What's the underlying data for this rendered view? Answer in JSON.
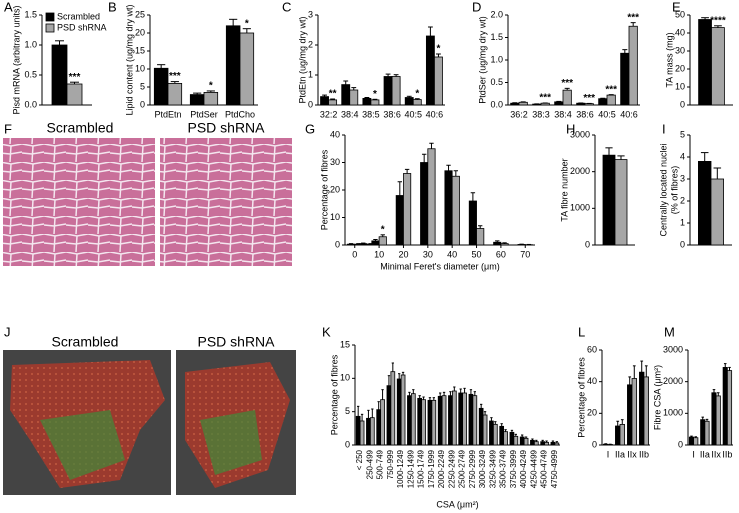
{
  "chart_data": [
    {
      "type": "bar",
      "panel": "A",
      "ylabel": "Pisd mRNA (arbitrary units)",
      "ylim": [
        0,
        1.5
      ],
      "yticks": [
        {
          "value": 0,
          "label": "0.0"
        },
        0.5,
        {
          "value": 1,
          "label": "1.0"
        },
        1.5
      ],
      "legend": "upper left",
      "series": [
        {
          "name": "Scrambled",
          "color": "#000000",
          "values": [
            1.0
          ],
          "errors": [
            0.07
          ]
        },
        {
          "name": "PSD shRNA",
          "color": "#a6a6a6",
          "values": [
            0.35
          ],
          "errors": [
            0.03
          ]
        }
      ],
      "annotations": [
        "***"
      ]
    },
    {
      "type": "bar",
      "panel": "B",
      "ylabel": "Lipid content (ug/mg dry wt)",
      "categories": [
        "PtdEtn",
        "PtdSer",
        "PtdCho"
      ],
      "ylim": [
        0,
        25
      ],
      "yticks": [
        0,
        5,
        10,
        15,
        20,
        25
      ],
      "series": [
        {
          "color": "#000000",
          "values": [
            10.2,
            2.9,
            22
          ],
          "errors": [
            1,
            0.4,
            1.8
          ]
        },
        {
          "color": "#a6a6a6",
          "values": [
            6.0,
            3.5,
            20
          ],
          "errors": [
            0.5,
            0.4,
            1.2
          ]
        }
      ],
      "annotations": [
        "***",
        "*",
        "*"
      ]
    },
    {
      "type": "bar",
      "panel": "C",
      "ylabel": "PtdEtn (ug/mg dry wt)",
      "categories": [
        "32:2",
        "38:4",
        "38:5",
        "38:6",
        "40:5",
        "40:6"
      ],
      "ylim": [
        0,
        3
      ],
      "yticks": [
        0,
        1,
        2,
        3
      ],
      "series": [
        {
          "color": "#000000",
          "values": [
            0.28,
            0.68,
            0.22,
            0.95,
            0.25,
            2.3
          ],
          "errors": [
            0.05,
            0.12,
            0.03,
            0.08,
            0.04,
            0.3
          ]
        },
        {
          "color": "#a6a6a6",
          "values": [
            0.17,
            0.5,
            0.17,
            0.95,
            0.18,
            1.6
          ],
          "errors": [
            0.03,
            0.08,
            0.02,
            0.06,
            0.03,
            0.1
          ]
        }
      ],
      "annotations": [
        "**",
        null,
        "*",
        null,
        "*",
        "*"
      ]
    },
    {
      "type": "bar",
      "panel": "D",
      "ylabel": "PtdSer (ug/mg dry wt)",
      "categories": [
        "36:2",
        "38:3",
        "38:4",
        "38:6",
        "40:5",
        "40:6"
      ],
      "ylim": [
        0,
        2
      ],
      "yticks": [
        {
          "value": 0,
          "label": "0.0"
        },
        0.5,
        {
          "value": 1,
          "label": "1.0"
        },
        1.5,
        {
          "value": 2,
          "label": "2.0"
        }
      ],
      "series": [
        {
          "color": "#000000",
          "values": [
            0.04,
            0.02,
            0.07,
            0.04,
            0.14,
            1.15
          ],
          "errors": [
            0.01,
            0.005,
            0.01,
            0.005,
            0.01,
            0.08
          ]
        },
        {
          "color": "#a6a6a6",
          "values": [
            0.06,
            0.04,
            0.33,
            0.03,
            0.22,
            1.75
          ],
          "errors": [
            0.01,
            0.005,
            0.04,
            0.005,
            0.01,
            0.08
          ]
        }
      ],
      "annotations": [
        null,
        "***",
        "***",
        "***",
        "***",
        "***"
      ]
    },
    {
      "type": "bar",
      "panel": "E",
      "ylabel": "TA mass (mg)",
      "ylim": [
        0,
        50
      ],
      "yticks": [
        0,
        10,
        20,
        30,
        40,
        50
      ],
      "series": [
        {
          "color": "#000000",
          "values": [
            47.5
          ],
          "errors": [
            1
          ]
        },
        {
          "color": "#a6a6a6",
          "values": [
            43
          ],
          "errors": [
            1
          ]
        }
      ],
      "annotations": [
        "****"
      ]
    },
    {
      "type": "bar",
      "panel": "G",
      "ylabel": "Percentage of fibres",
      "xlabel": "Minimal Feret's diameter (μm)",
      "x": [
        0,
        5,
        10,
        20,
        30,
        40,
        50,
        60,
        70
      ],
      "xlim": [
        -4,
        74
      ],
      "xticks": [
        0,
        10,
        20,
        30,
        40,
        50,
        60,
        70
      ],
      "ylim": [
        0,
        40
      ],
      "yticks": [
        0,
        10,
        20,
        30,
        40
      ],
      "series": [
        {
          "color": "#000000",
          "values": [
            0.3,
            0.5,
            1.5,
            18,
            30,
            27,
            16,
            1,
            0.2
          ],
          "errors": [
            0.2,
            0.2,
            0.5,
            5,
            3,
            2,
            3,
            0.5,
            0.1
          ]
        },
        {
          "color": "#a6a6a6",
          "values": [
            0.3,
            0.3,
            3,
            26,
            35,
            25,
            6,
            0.5,
            0.1
          ],
          "errors": [
            0.2,
            0.2,
            0.7,
            1.5,
            2,
            2,
            1,
            0.3,
            0.1
          ]
        }
      ],
      "annotations": [
        null,
        null,
        "*",
        null,
        null,
        null,
        null,
        null,
        null
      ]
    },
    {
      "type": "bar",
      "panel": "H",
      "ylabel": "TA fibre number",
      "ylim": [
        0,
        3000
      ],
      "yticks": [
        0,
        1000,
        2000,
        3000
      ],
      "series": [
        {
          "color": "#000000",
          "values": [
            2450
          ],
          "errors": [
            200
          ]
        },
        {
          "color": "#a6a6a6",
          "values": [
            2330
          ],
          "errors": [
            100
          ]
        }
      ]
    },
    {
      "type": "bar",
      "panel": "I",
      "ylabel": [
        "Centrally located nuclei",
        "(% of fibres)"
      ],
      "ylim": [
        0,
        5
      ],
      "yticks": [
        0,
        1,
        2,
        3,
        4,
        5
      ],
      "series": [
        {
          "color": "#000000",
          "values": [
            3.8
          ],
          "errors": [
            0.4
          ]
        },
        {
          "color": "#a6a6a6",
          "values": [
            3.0
          ],
          "errors": [
            0.5
          ]
        }
      ]
    },
    {
      "type": "bar",
      "panel": "K",
      "ylabel": "Percentage of fibres",
      "xlabel": "CSA (μm²)",
      "categories": [
        "< 250",
        "250-499",
        "500-749",
        "750-999",
        "1000-1249",
        "1250-1499",
        "1500-1749",
        "1750-1999",
        "2000-2249",
        "2250-2499",
        "2500-2749",
        "2750-2999",
        "3000-3249",
        "3250-3499",
        "3500-3749",
        "3750-3999",
        "4000-4249",
        "4250-4499",
        "4500-4749",
        "4750-4999"
      ],
      "ylim": [
        0,
        15
      ],
      "yticks": [
        0,
        5,
        10,
        15
      ],
      "series": [
        {
          "color": "#000000",
          "values": [
            4.3,
            4.0,
            5.3,
            8.9,
            9.9,
            7.4,
            7.0,
            6.7,
            7.3,
            7.4,
            7.8,
            7.6,
            5.5,
            3.6,
            2.8,
            1.9,
            1.2,
            0.7,
            0.5,
            0.4
          ],
          "errors": [
            1.5,
            1.2,
            1.2,
            1.5,
            0.8,
            0.5,
            0.4,
            0.4,
            0.5,
            0.6,
            0.6,
            0.7,
            0.6,
            0.5,
            0.4,
            0.3,
            0.3,
            0.2,
            0.2,
            0.2
          ]
        },
        {
          "color": "#a6a6a6",
          "values": [
            3.6,
            4.1,
            6.8,
            11.0,
            10.5,
            7.7,
            6.8,
            6.7,
            7.4,
            8.1,
            7.8,
            7.4,
            4.5,
            3.1,
            2.0,
            1.3,
            1.0,
            0.5,
            0.4,
            0.3
          ],
          "errors": [
            1,
            1.3,
            1.5,
            1.3,
            0.4,
            0.6,
            0.4,
            0.4,
            0.5,
            0.6,
            0.7,
            0.6,
            0.5,
            0.4,
            0.3,
            0.3,
            0.2,
            0.2,
            0.2,
            0.2
          ]
        }
      ]
    },
    {
      "type": "bar",
      "panel": "L",
      "ylabel": "Percentage of fibres",
      "categories": [
        "I",
        "IIa",
        "IIx",
        "IIb"
      ],
      "ylim": [
        0,
        60
      ],
      "yticks": [
        0,
        20,
        40,
        60
      ],
      "series": [
        {
          "color": "#000000",
          "values": [
            0.5,
            12,
            38,
            46
          ],
          "errors": [
            0.3,
            3,
            5,
            7
          ]
        },
        {
          "color": "#a6a6a6",
          "values": [
            0.3,
            13,
            42,
            43
          ],
          "errors": [
            0.2,
            3,
            8,
            7
          ]
        }
      ]
    },
    {
      "type": "bar",
      "panel": "M",
      "ylabel": "Fibre CSA (μm²)",
      "categories": [
        "I",
        "IIa",
        "IIx",
        "IIb"
      ],
      "ylim": [
        0,
        3000
      ],
      "yticks": [
        0,
        1000,
        2000,
        3000
      ],
      "series": [
        {
          "color": "#000000",
          "values": [
            250,
            800,
            1650,
            2450
          ],
          "errors": [
            30,
            80,
            100,
            120
          ]
        },
        {
          "color": "#a6a6a6",
          "values": [
            230,
            750,
            1550,
            2350
          ],
          "errors": [
            30,
            60,
            100,
            100
          ]
        }
      ]
    }
  ],
  "images": [
    {
      "panel": "F",
      "labels": [
        "Scrambled",
        "PSD shRNA"
      ]
    },
    {
      "panel": "J",
      "labels": [
        "Scrambled",
        "PSD shRNA"
      ]
    }
  ]
}
